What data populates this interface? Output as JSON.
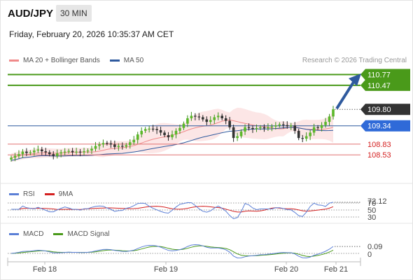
{
  "header": {
    "symbol": "AUD/JPY",
    "timeframe": "30 MIN",
    "datetime": "Friday, February 20, 2026 10:35:37 AM CET"
  },
  "legend": {
    "main": [
      {
        "label": "MA 20 + Bollinger Bands",
        "color": "#f08a8a"
      },
      {
        "label": "MA 50",
        "color": "#2f5a9e"
      }
    ],
    "rsi": [
      {
        "label": "RSI",
        "color": "#5b7fd6"
      },
      {
        "label": "9MA",
        "color": "#d42020"
      }
    ],
    "macd": [
      {
        "label": "MACD",
        "color": "#5b7fd6"
      },
      {
        "label": "MACD Signal",
        "color": "#4a9a1a"
      }
    ]
  },
  "credit": "Research © 2026 Trading Central",
  "chart_data": {
    "type": "candlestick",
    "x_ticks": [
      "Feb 18",
      "Feb 19",
      "Feb 20",
      "Feb 21"
    ],
    "price_levels": [
      {
        "value": 110.77,
        "label": "110.77",
        "kind": "target",
        "color": "#4a9a1a"
      },
      {
        "value": 110.47,
        "label": "110.47",
        "kind": "target",
        "color": "#4a9a1a"
      },
      {
        "value": 109.8,
        "label": "109.80",
        "kind": "last",
        "color": "#333333"
      },
      {
        "value": 109.34,
        "label": "109.34",
        "kind": "pivot",
        "color": "#2f6ad8"
      },
      {
        "value": 108.83,
        "label": "108.83",
        "kind": "support",
        "color": "#d42020"
      },
      {
        "value": 108.53,
        "label": "108.53",
        "kind": "support",
        "color": "#d42020"
      }
    ],
    "close": [
      108.45,
      108.5,
      108.55,
      108.62,
      108.58,
      108.6,
      108.65,
      108.68,
      108.63,
      108.6,
      108.55,
      108.5,
      108.57,
      108.6,
      108.62,
      108.64,
      108.6,
      108.62,
      108.6,
      108.63,
      108.65,
      108.7,
      108.78,
      108.82,
      108.86,
      108.85,
      108.82,
      108.75,
      108.78,
      108.76,
      108.8,
      108.88,
      108.95,
      109.1,
      109.2,
      109.25,
      109.26,
      109.25,
      109.22,
      109.15,
      109.08,
      109.02,
      109.1,
      109.2,
      109.28,
      109.4,
      109.55,
      109.62,
      109.6,
      109.58,
      109.52,
      109.45,
      109.5,
      109.58,
      109.62,
      109.55,
      109.48,
      109.3,
      109.0,
      109.05,
      109.18,
      109.3,
      109.28,
      109.25,
      109.28,
      109.3,
      109.27,
      109.3,
      109.32,
      109.35,
      109.38,
      109.36,
      109.33,
      109.35,
      109.2,
      109.0,
      108.98,
      109.05,
      109.15,
      109.3,
      109.28,
      109.36,
      109.45,
      109.6,
      109.8
    ],
    "rsi": {
      "label": "72.12",
      "levels": [
        70,
        50,
        30
      ],
      "level_labels": [
        "70",
        "50",
        "30"
      ],
      "current": 72.12
    },
    "macd": {
      "label": "0.09",
      "zero_label": "0",
      "current": 0.09
    }
  }
}
